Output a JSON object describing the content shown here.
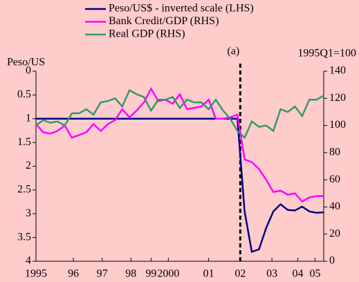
{
  "chart_data": {
    "type": "line",
    "y_label": "Peso/US",
    "y2_label": "1995Q1=100",
    "annotation": {
      "text": "(a)",
      "x": 2002.1
    },
    "x": [
      1995,
      1995.25,
      1995.5,
      1995.75,
      1996,
      1996.25,
      1996.5,
      1996.75,
      1997,
      1997.25,
      1997.5,
      1997.75,
      1998,
      1998.25,
      1998.5,
      1998.75,
      1999,
      1999.25,
      1999.5,
      1999.75,
      2000,
      2000.25,
      2000.5,
      2000.75,
      2001,
      2001.25,
      2001.5,
      2001.75,
      2002,
      2002.25,
      2002.5,
      2002.75,
      2003,
      2003.25,
      2003.5,
      2003.75,
      2004,
      2004.25,
      2004.5,
      2004.75,
      2005
    ],
    "xlim": [
      1995,
      2005
    ],
    "xticks": [
      {
        "value": 1995,
        "label": "1995"
      },
      {
        "value": 1996.3,
        "label": "96"
      },
      {
        "value": 1997.3,
        "label": "97"
      },
      {
        "value": 1998.3,
        "label": "98"
      },
      {
        "value": 1999,
        "label": "99"
      },
      {
        "value": 1999.6,
        "label": "2000"
      },
      {
        "value": 2001,
        "label": "01"
      },
      {
        "value": 2002.1,
        "label": "02"
      },
      {
        "value": 2003.2,
        "label": "03"
      },
      {
        "value": 2004.1,
        "label": "04"
      },
      {
        "value": 2004.7,
        "label": "05"
      }
    ],
    "ylim": [
      4,
      0
    ],
    "yticks": [
      0,
      0.5,
      1,
      1.5,
      2,
      2.5,
      3,
      3.5,
      4
    ],
    "y2lim": [
      0,
      140
    ],
    "y2ticks": [
      0,
      20,
      40,
      60,
      80,
      100,
      120,
      140
    ],
    "series": [
      {
        "name": "Peso/US$ - inverted scale (LHS)",
        "color": "#000080",
        "values": [
          1,
          1,
          1,
          1,
          1,
          1,
          1,
          1,
          1,
          1,
          1,
          1,
          1,
          1,
          1,
          1,
          1,
          1,
          1,
          1,
          1,
          1,
          1,
          1,
          1,
          1,
          1,
          1,
          1,
          2.95,
          3.8,
          3.75,
          3.3,
          2.95,
          2.8,
          2.92,
          2.93,
          2.85,
          2.95,
          2.98,
          2.97
        ]
      },
      {
        "name": "Bank Credit/GDP (RHS)",
        "color": "#ff00ff",
        "axis": "y2",
        "values": [
          101,
          95,
          94,
          96,
          100,
          91,
          93,
          95,
          101,
          96,
          101,
          104,
          112,
          106,
          111,
          117,
          127,
          118,
          119,
          116,
          123,
          112,
          113,
          114,
          119,
          105,
          105,
          106,
          108,
          75,
          73,
          68,
          60,
          51,
          52,
          49,
          50,
          44,
          47,
          48,
          48
        ]
      },
      {
        "name": "Real GDP (RHS)",
        "color": "#339966",
        "axis": "y2",
        "values": [
          100,
          104,
          102,
          103,
          100,
          109,
          109,
          112,
          108,
          117,
          118,
          120,
          114,
          126,
          123,
          121,
          111,
          119,
          119,
          121,
          113,
          119,
          117,
          117,
          112,
          119,
          111,
          105,
          96,
          91,
          103,
          99,
          100,
          96,
          112,
          110,
          114,
          107,
          119,
          119,
          122
        ]
      }
    ]
  }
}
